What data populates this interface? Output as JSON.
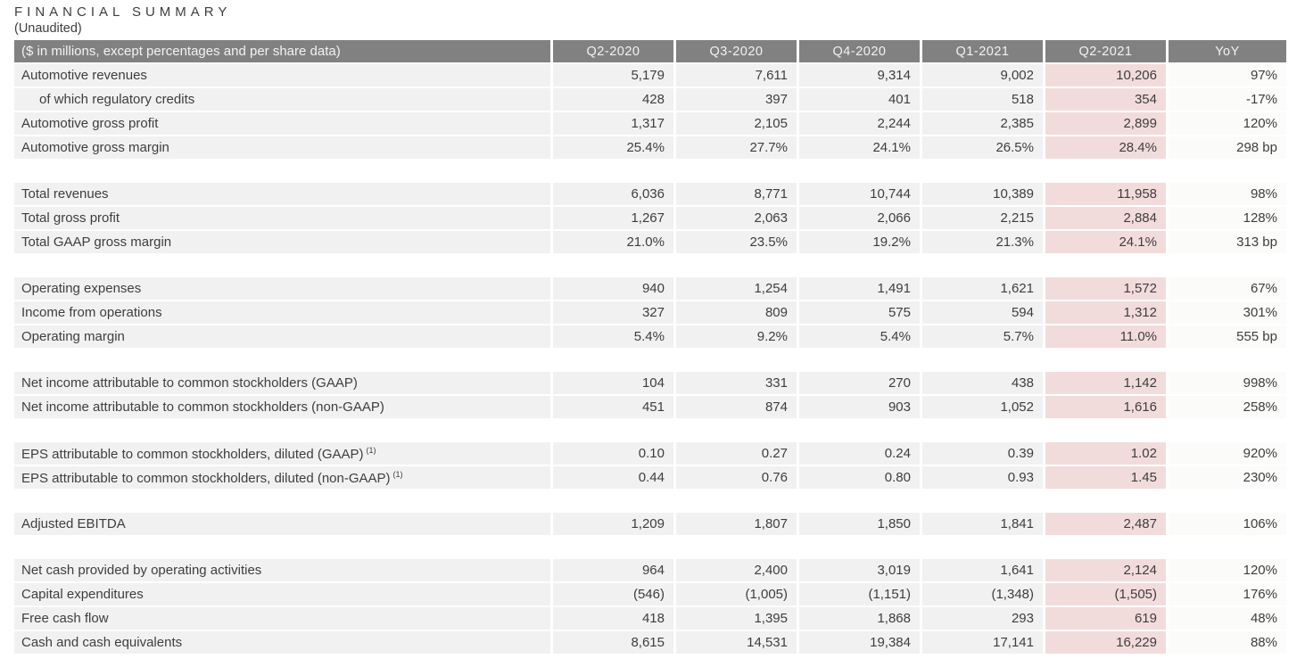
{
  "title": "FINANCIAL SUMMARY",
  "subtitle": "(Unaudited)",
  "colors": {
    "header_bg": "#818181",
    "header_text": "#f4f2f0",
    "row_bg": "#f1f1f2",
    "highlight_col_bg": "#f2dcdb",
    "yoy_col_bg": "#fbfbfa",
    "text": "#3e3e3e"
  },
  "table": {
    "header": [
      "($ in millions, except percentages and per share data)",
      "Q2-2020",
      "Q3-2020",
      "Q4-2020",
      "Q1-2021",
      "Q2-2021",
      "YoY"
    ],
    "highlight_column": "Q2-2021",
    "sections": [
      {
        "rows": [
          {
            "label": "Automotive revenues",
            "indent": false,
            "sup": "",
            "values": [
              "5,179",
              "7,611",
              "9,314",
              "9,002",
              "10,206"
            ],
            "yoy": "97%"
          },
          {
            "label": "of which regulatory credits",
            "indent": true,
            "sup": "",
            "values": [
              "428",
              "397",
              "401",
              "518",
              "354"
            ],
            "yoy": "-17%"
          },
          {
            "label": "Automotive gross profit",
            "indent": false,
            "sup": "",
            "values": [
              "1,317",
              "2,105",
              "2,244",
              "2,385",
              "2,899"
            ],
            "yoy": "120%"
          },
          {
            "label": "Automotive gross margin",
            "indent": false,
            "sup": "",
            "values": [
              "25.4%",
              "27.7%",
              "24.1%",
              "26.5%",
              "28.4%"
            ],
            "yoy": "298 bp"
          }
        ]
      },
      {
        "rows": [
          {
            "label": "Total revenues",
            "indent": false,
            "sup": "",
            "values": [
              "6,036",
              "8,771",
              "10,744",
              "10,389",
              "11,958"
            ],
            "yoy": "98%"
          },
          {
            "label": "Total gross profit",
            "indent": false,
            "sup": "",
            "values": [
              "1,267",
              "2,063",
              "2,066",
              "2,215",
              "2,884"
            ],
            "yoy": "128%"
          },
          {
            "label": "Total GAAP gross margin",
            "indent": false,
            "sup": "",
            "values": [
              "21.0%",
              "23.5%",
              "19.2%",
              "21.3%",
              "24.1%"
            ],
            "yoy": "313 bp"
          }
        ]
      },
      {
        "rows": [
          {
            "label": "Operating expenses",
            "indent": false,
            "sup": "",
            "values": [
              "940",
              "1,254",
              "1,491",
              "1,621",
              "1,572"
            ],
            "yoy": "67%"
          },
          {
            "label": "Income from operations",
            "indent": false,
            "sup": "",
            "values": [
              "327",
              "809",
              "575",
              "594",
              "1,312"
            ],
            "yoy": "301%"
          },
          {
            "label": "Operating margin",
            "indent": false,
            "sup": "",
            "values": [
              "5.4%",
              "9.2%",
              "5.4%",
              "5.7%",
              "11.0%"
            ],
            "yoy": "555 bp"
          }
        ]
      },
      {
        "rows": [
          {
            "label": "Net income attributable to common stockholders (GAAP)",
            "indent": false,
            "sup": "",
            "values": [
              "104",
              "331",
              "270",
              "438",
              "1,142"
            ],
            "yoy": "998%"
          },
          {
            "label": "Net income attributable to common stockholders (non-GAAP)",
            "indent": false,
            "sup": "",
            "values": [
              "451",
              "874",
              "903",
              "1,052",
              "1,616"
            ],
            "yoy": "258%"
          }
        ]
      },
      {
        "rows": [
          {
            "label": "EPS attributable to common stockholders, diluted (GAAP)",
            "indent": false,
            "sup": "(1)",
            "values": [
              "0.10",
              "0.27",
              "0.24",
              "0.39",
              "1.02"
            ],
            "yoy": "920%"
          },
          {
            "label": "EPS attributable to common stockholders, diluted (non-GAAP)",
            "indent": false,
            "sup": "(1)",
            "values": [
              "0.44",
              "0.76",
              "0.80",
              "0.93",
              "1.45"
            ],
            "yoy": "230%"
          }
        ]
      },
      {
        "rows": [
          {
            "label": "Adjusted EBITDA",
            "indent": false,
            "sup": "",
            "values": [
              "1,209",
              "1,807",
              "1,850",
              "1,841",
              "2,487"
            ],
            "yoy": "106%"
          }
        ]
      },
      {
        "rows": [
          {
            "label": "Net cash provided by operating activities",
            "indent": false,
            "sup": "",
            "values": [
              "964",
              "2,400",
              "3,019",
              "1,641",
              "2,124"
            ],
            "yoy": "120%"
          },
          {
            "label": "Capital expenditures",
            "indent": false,
            "sup": "",
            "values": [
              "(546)",
              "(1,005)",
              "(1,151)",
              "(1,348)",
              "(1,505)"
            ],
            "yoy": "176%"
          },
          {
            "label": "Free cash flow",
            "indent": false,
            "sup": "",
            "values": [
              "418",
              "1,395",
              "1,868",
              "293",
              "619"
            ],
            "yoy": "48%"
          },
          {
            "label": "Cash and cash equivalents",
            "indent": false,
            "sup": "",
            "values": [
              "8,615",
              "14,531",
              "19,384",
              "17,141",
              "16,229"
            ],
            "yoy": "88%"
          }
        ]
      }
    ]
  }
}
